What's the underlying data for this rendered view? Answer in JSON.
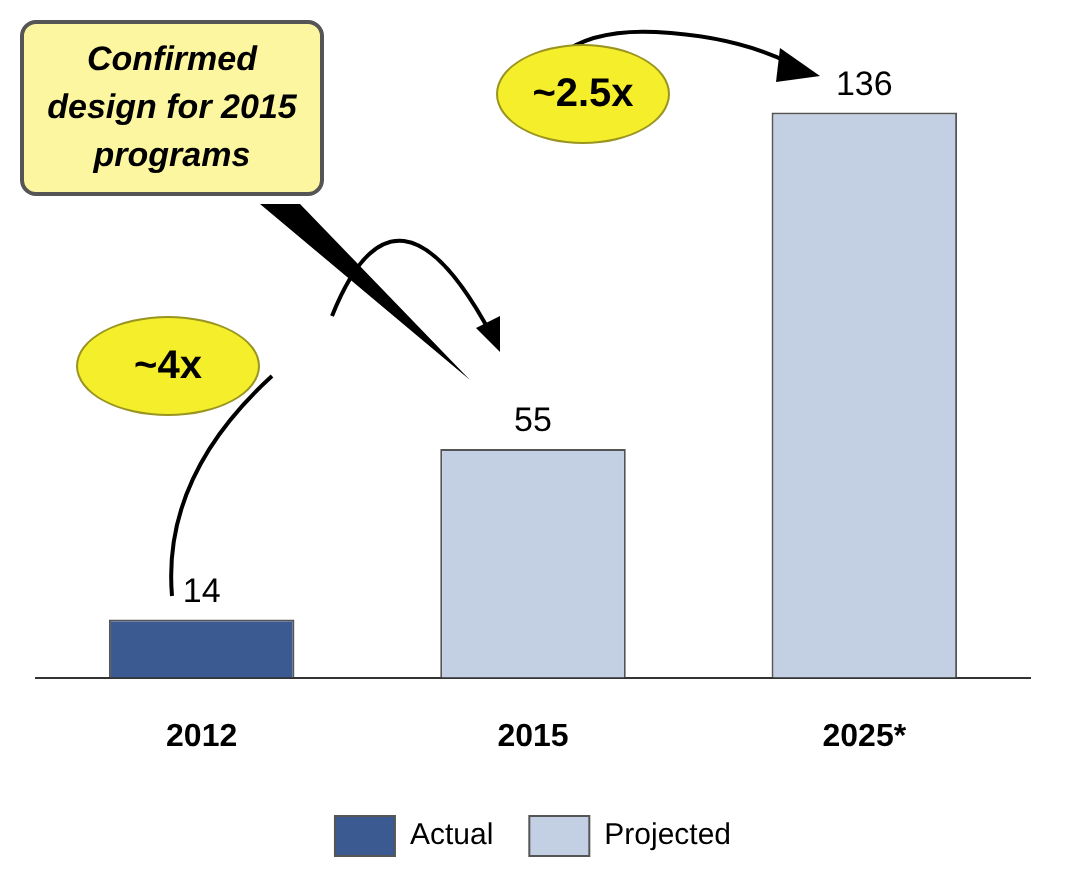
{
  "chart_data": {
    "type": "bar",
    "categories": [
      "2012",
      "2015",
      "2025*"
    ],
    "stacked": true,
    "series": [
      {
        "name": "Actual",
        "color": "#3b5a92",
        "values": [
          14,
          null,
          null
        ]
      },
      {
        "name": "Projected",
        "color": "#c3cfe3",
        "values": [
          null,
          55,
          136
        ]
      }
    ],
    "data_labels": true,
    "legend": "bottom",
    "grid": false,
    "annotations": [
      "Confirmed design for 2015 programs",
      "~4x",
      "~2.5x"
    ]
  }
}
